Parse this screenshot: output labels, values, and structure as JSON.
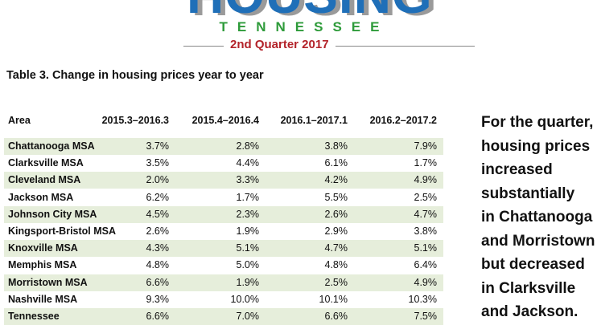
{
  "header": {
    "logo": "HOUSING",
    "state": "TENNESSEE",
    "period": "2nd Quarter 2017"
  },
  "table": {
    "title": "Table 3. Change in housing prices year to year",
    "columns": [
      "Area",
      "2015.3–2016.3",
      "2015.4–2016.4",
      "2016.1–2017.1",
      "2016.2–2017.2"
    ],
    "rows": [
      [
        "Chattanooga MSA",
        "3.7%",
        "2.8%",
        "3.8%",
        "7.9%"
      ],
      [
        "Clarksville MSA",
        "3.5%",
        "4.4%",
        "6.1%",
        "1.7%"
      ],
      [
        "Cleveland MSA",
        "2.0%",
        "3.3%",
        "4.2%",
        "4.9%"
      ],
      [
        "Jackson MSA",
        "6.2%",
        "1.7%",
        "5.5%",
        "2.5%"
      ],
      [
        "Johnson City MSA",
        "4.5%",
        "2.3%",
        "2.6%",
        "4.7%"
      ],
      [
        "Kingsport-Bristol MSA",
        "2.6%",
        "1.9%",
        "2.9%",
        "3.8%"
      ],
      [
        "Knoxville MSA",
        "4.3%",
        "5.1%",
        "4.7%",
        "5.1%"
      ],
      [
        "Memphis MSA",
        "4.8%",
        "5.0%",
        "4.8%",
        "6.4%"
      ],
      [
        "Morristown MSA",
        "6.6%",
        "1.9%",
        "2.5%",
        "4.9%"
      ],
      [
        "Nashville MSA",
        "9.3%",
        "10.0%",
        "10.1%",
        "10.3%"
      ],
      [
        "Tennessee",
        "6.6%",
        "7.0%",
        "6.6%",
        "7.5%"
      ]
    ]
  },
  "sidebar": {
    "lines": [
      "For the quarter,",
      "housing prices",
      "increased",
      "substantially",
      "in Chattanooga",
      "and Morristown",
      "but decreased",
      "in Clarksville",
      "and Jackson."
    ]
  }
}
